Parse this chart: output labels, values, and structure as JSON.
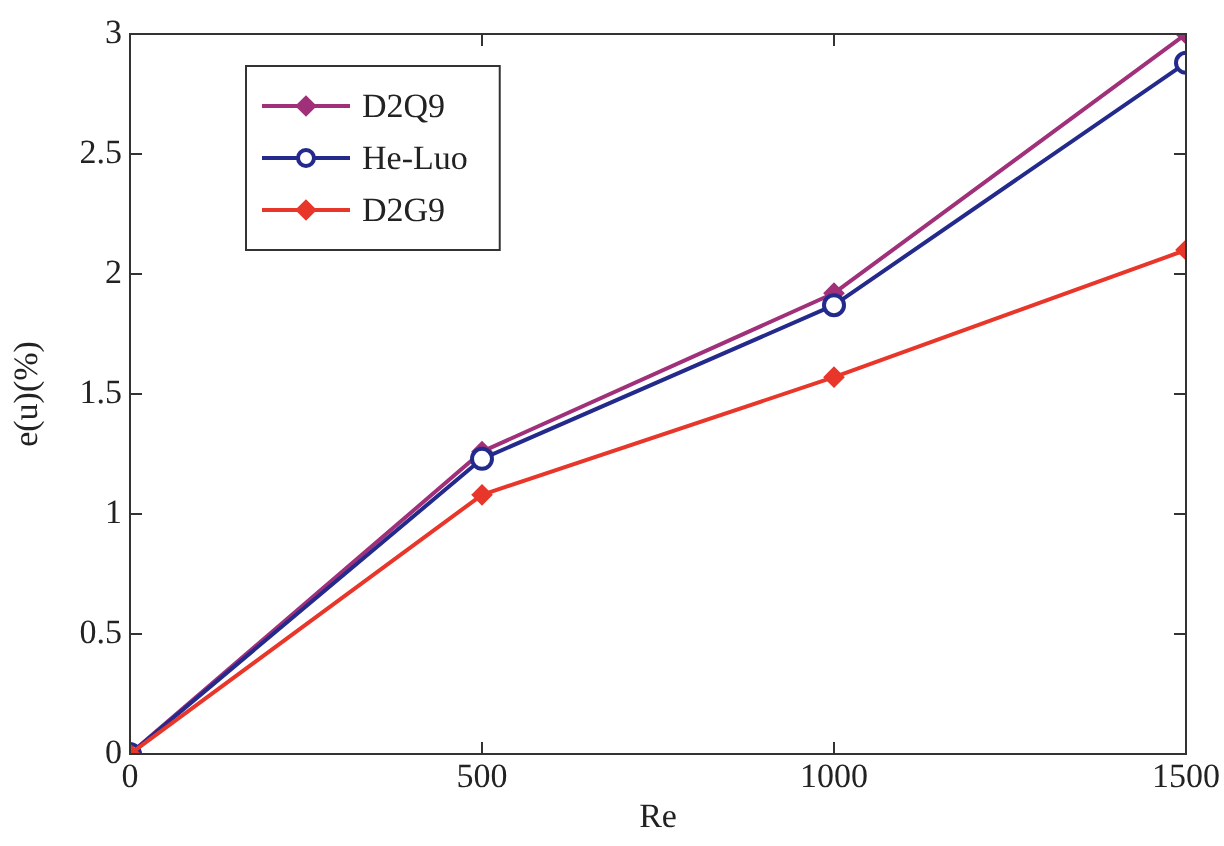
{
  "chart_data": {
    "type": "line",
    "xlabel": "Re",
    "ylabel": "e(u)(%)",
    "x": [
      0,
      500,
      1000,
      1500
    ],
    "xlim": [
      0,
      1500
    ],
    "xticks": [
      0,
      500,
      1000,
      1500
    ],
    "ylim": [
      0,
      3
    ],
    "yticks": [
      0,
      0.5,
      1,
      1.5,
      2,
      2.5,
      3
    ],
    "legend": "top left",
    "line_style": "solid",
    "series": [
      {
        "name": "D2Q9",
        "color": "#a0307a",
        "marker": "diamond",
        "values": [
          0,
          1.26,
          1.92,
          3.0
        ]
      },
      {
        "name": "He-Luo",
        "color": "#232a8c",
        "marker": "circle",
        "values": [
          0,
          1.23,
          1.87,
          2.88
        ]
      },
      {
        "name": "D2G9",
        "color": "#e8372a",
        "marker": "diamond",
        "values": [
          0,
          1.08,
          1.57,
          2.1
        ]
      }
    ]
  }
}
